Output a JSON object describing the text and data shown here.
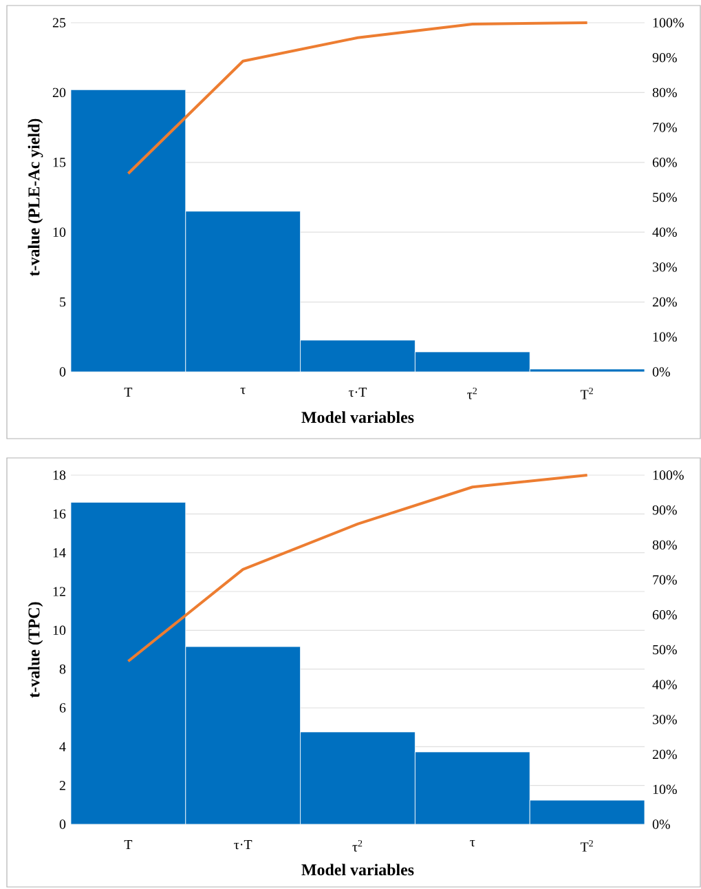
{
  "chart_data": [
    {
      "type": "bar",
      "categories": [
        "T",
        "τ",
        "τ·T",
        "τ$^{2}$",
        "T$^{2}$"
      ],
      "xlabel": "Model variables",
      "ylabel": "t-value (PLE-Ac yield)",
      "grid": "y",
      "ylim": [
        0,
        25
      ],
      "yticks": [
        0,
        5,
        10,
        15,
        20,
        25
      ],
      "y2lim": [
        0,
        100
      ],
      "y2ticks": [
        {
          "value": 0,
          "label": "0%"
        },
        {
          "value": 10,
          "label": "10%"
        },
        {
          "value": 20,
          "label": "20%"
        },
        {
          "value": 30,
          "label": "30%"
        },
        {
          "value": 40,
          "label": "40%"
        },
        {
          "value": 50,
          "label": "50%"
        },
        {
          "value": 60,
          "label": "60%"
        },
        {
          "value": 70,
          "label": "70%"
        },
        {
          "value": 80,
          "label": "80%"
        },
        {
          "value": 90,
          "label": "90%"
        },
        {
          "value": 100,
          "label": "100%"
        }
      ],
      "series": [
        {
          "color": "#0070c0",
          "values": [
            20.2,
            11.5,
            2.27,
            1.43,
            0.2
          ]
        },
        {
          "type": "line",
          "axis": "y2",
          "color": "#ed7d31",
          "values": [
            56.8,
            89.0,
            95.7,
            99.6,
            100
          ]
        }
      ]
    },
    {
      "type": "bar",
      "categories": [
        "T",
        "τ·T",
        "τ$^{2}$",
        "τ",
        "T$^{2}$"
      ],
      "xlabel": "Model variables",
      "ylabel": "t-value (TPC)",
      "grid": "y",
      "ylim": [
        0,
        18
      ],
      "yticks": [
        0,
        2,
        4,
        6,
        8,
        10,
        12,
        14,
        16,
        18
      ],
      "y2lim": [
        0,
        100
      ],
      "y2ticks": [
        {
          "value": 0,
          "label": "0%"
        },
        {
          "value": 10,
          "label": "10%"
        },
        {
          "value": 20,
          "label": "20%"
        },
        {
          "value": 30,
          "label": "30%"
        },
        {
          "value": 40,
          "label": "40%"
        },
        {
          "value": 50,
          "label": "50%"
        },
        {
          "value": 60,
          "label": "60%"
        },
        {
          "value": 70,
          "label": "70%"
        },
        {
          "value": 80,
          "label": "80%"
        },
        {
          "value": 90,
          "label": "90%"
        },
        {
          "value": 100,
          "label": "100%"
        }
      ],
      "series": [
        {
          "color": "#0070c0",
          "values": [
            16.6,
            9.16,
            4.76,
            3.73,
            1.24
          ]
        },
        {
          "type": "line",
          "axis": "y2",
          "color": "#ed7d31",
          "values": [
            46.7,
            73.0,
            86.0,
            96.6,
            100
          ]
        }
      ]
    }
  ]
}
